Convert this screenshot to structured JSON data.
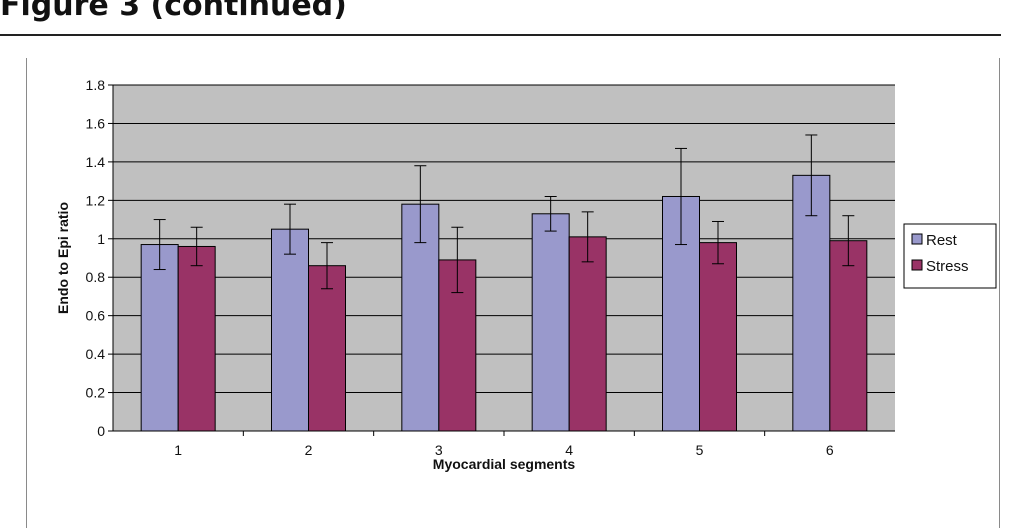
{
  "header": {
    "text": "Figure 3 (continued)"
  },
  "chart_data": {
    "type": "bar",
    "title": "",
    "xlabel": "Myocardial segments",
    "ylabel": "Endo to Epi ratio",
    "categories": [
      "1",
      "2",
      "3",
      "4",
      "5",
      "6"
    ],
    "ylim": [
      0,
      1.8
    ],
    "yticks": [
      "0",
      "0.2",
      "0.4",
      "0.6",
      "0.8",
      "1",
      "1.2",
      "1.4",
      "1.6",
      "1.8"
    ],
    "grid": true,
    "legend": "right",
    "series": [
      {
        "name": "Rest",
        "color": "#9999cc",
        "values": [
          0.97,
          1.05,
          1.18,
          1.13,
          1.22,
          1.33
        ],
        "error": [
          0.13,
          0.13,
          0.2,
          0.09,
          0.25,
          0.21
        ]
      },
      {
        "name": "Stress",
        "color": "#993366",
        "values": [
          0.96,
          0.86,
          0.89,
          1.01,
          0.98,
          0.99
        ],
        "error": [
          0.1,
          0.12,
          0.17,
          0.13,
          0.11,
          0.13
        ]
      }
    ],
    "colors": {
      "plot_background": "#c0c0c0",
      "gridline": "#000000"
    }
  }
}
